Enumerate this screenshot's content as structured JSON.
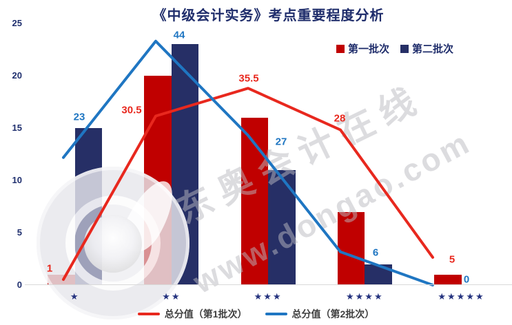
{
  "title": "《中级会计实务》考点重要程度分析",
  "colors": {
    "bar_batch1": "#c00000",
    "bar_batch2": "#262f66",
    "line_batch1": "#e8281e",
    "line_batch2": "#1f76c2",
    "navy_text": "#1f2d6b",
    "axis_line": "#d9d9d9",
    "watermark_gray": "#d8d8dc"
  },
  "legend_top": [
    {
      "label": "第一批次",
      "color": "#c00000"
    },
    {
      "label": "第二批次",
      "color": "#262f66"
    }
  ],
  "legend_bottom": [
    {
      "label": "总分值（第1批次）",
      "color": "#e8281e"
    },
    {
      "label": "总分值（第2批次）",
      "color": "#1f76c2"
    }
  ],
  "watermark": {
    "brand_text": "东奥会计在线",
    "url_text": "www.dongao.com"
  },
  "chart_data": {
    "type": "bar",
    "subtype": "combo bar + line, line on hidden secondary axis",
    "title": "《中级会计实务》考点重要程度分析",
    "categories": [
      "★",
      "★★",
      "★★★",
      "★★★★",
      "★★★★★"
    ],
    "bar_series": [
      {
        "name": "第一批次",
        "color": "#c00000",
        "values": [
          1,
          20,
          16,
          7,
          1
        ]
      },
      {
        "name": "第二批次",
        "color": "#262f66",
        "values": [
          15,
          23,
          11,
          2,
          0
        ]
      }
    ],
    "line_series": [
      {
        "name": "总分值（第1批次）",
        "color": "#e8281e",
        "values": [
          1,
          30.5,
          35.5,
          28,
          5
        ]
      },
      {
        "name": "总分值（第2批次）",
        "color": "#1f76c2",
        "values": [
          23,
          44,
          27,
          6,
          0
        ]
      }
    ],
    "primary_axis": {
      "min": 0,
      "max": 25,
      "ticks": [
        0,
        5,
        10,
        15,
        20,
        25
      ]
    },
    "secondary_axis": {
      "min": 0,
      "max": 47,
      "visible": false
    },
    "gridlines": false,
    "xlabel": "",
    "ylabel": "",
    "legend_position": "bars top-right, lines bottom-center"
  }
}
